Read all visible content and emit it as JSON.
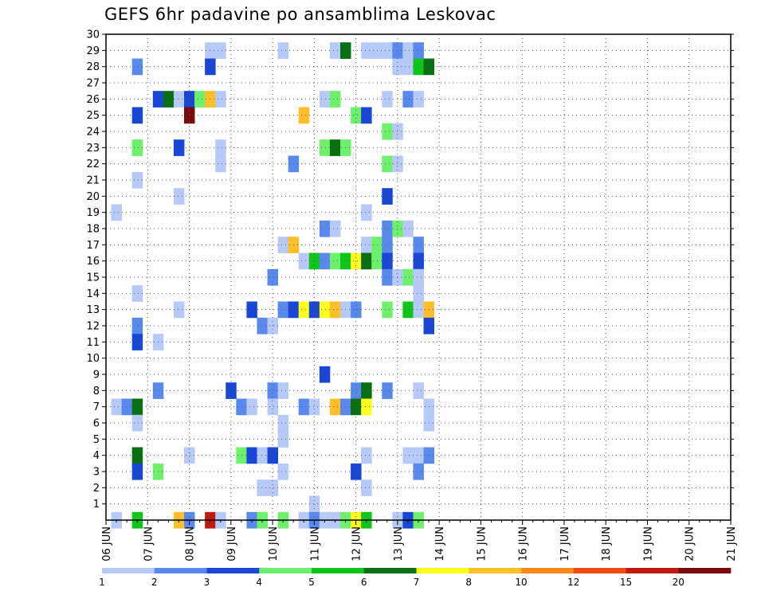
{
  "chart_data": {
    "type": "heatmap",
    "title": "GEFS 6hr padavine po ansamblima Leskovac",
    "x_tick_labels": [
      "06 JUN",
      "07 JUN",
      "08 JUN",
      "09 JUN",
      "10 JUN",
      "11 JUN",
      "12 JUN",
      "13 JUN",
      "14 JUN",
      "15 JUN",
      "16 JUN",
      "17 JUN",
      "18 JUN",
      "19 JUN",
      "20 JUN",
      "21 JUN"
    ],
    "y_tick_labels": [
      "1",
      "2",
      "3",
      "4",
      "5",
      "6",
      "7",
      "8",
      "9",
      "10",
      "11",
      "12",
      "13",
      "14",
      "15",
      "16",
      "17",
      "18",
      "19",
      "20",
      "21",
      "22",
      "23",
      "24",
      "25",
      "26",
      "27",
      "28",
      "29",
      "30"
    ],
    "xlim_days": [
      0,
      15
    ],
    "ylim": [
      0,
      30
    ],
    "time_step_hours": 6,
    "grid": true,
    "legend_position": "bottom",
    "legend": {
      "thresholds": [
        "1",
        "2",
        "3",
        "4",
        "5",
        "6",
        "7",
        "8",
        "10",
        "12",
        "15",
        "20"
      ],
      "colors": [
        "#b7c9f7",
        "#5a89ee",
        "#1a46d8",
        "#6ef06c",
        "#10c41c",
        "#0a6e12",
        "#ffff1e",
        "#ffbf28",
        "#fb8a1a",
        "#f04a12",
        "#c01a0f",
        "#780c0c"
      ]
    },
    "cells": [
      {
        "m": 29,
        "s": 10,
        "c": 1
      },
      {
        "m": 29,
        "s": 11,
        "c": 1
      },
      {
        "m": 29,
        "s": 17,
        "c": 1
      },
      {
        "m": 29,
        "s": 22,
        "c": 1
      },
      {
        "m": 29,
        "s": 23,
        "c": 6
      },
      {
        "m": 29,
        "s": 25,
        "c": 1
      },
      {
        "m": 29,
        "s": 26,
        "c": 1
      },
      {
        "m": 29,
        "s": 27,
        "c": 1
      },
      {
        "m": 29,
        "s": 28,
        "c": 2
      },
      {
        "m": 29,
        "s": 29,
        "c": 1
      },
      {
        "m": 29,
        "s": 30,
        "c": 2
      },
      {
        "m": 28,
        "s": 3,
        "c": 2
      },
      {
        "m": 28,
        "s": 10,
        "c": 3
      },
      {
        "m": 28,
        "s": 28,
        "c": 1
      },
      {
        "m": 28,
        "s": 29,
        "c": 1
      },
      {
        "m": 28,
        "s": 30,
        "c": 5
      },
      {
        "m": 28,
        "s": 31,
        "c": 6
      },
      {
        "m": 26,
        "s": 5,
        "c": 3
      },
      {
        "m": 26,
        "s": 6,
        "c": 6
      },
      {
        "m": 26,
        "s": 7,
        "c": 1
      },
      {
        "m": 26,
        "s": 8,
        "c": 3
      },
      {
        "m": 26,
        "s": 9,
        "c": 4
      },
      {
        "m": 26,
        "s": 10,
        "c": 8
      },
      {
        "m": 26,
        "s": 11,
        "c": 1
      },
      {
        "m": 26,
        "s": 21,
        "c": 1
      },
      {
        "m": 26,
        "s": 22,
        "c": 4
      },
      {
        "m": 26,
        "s": 27,
        "c": 1
      },
      {
        "m": 26,
        "s": 29,
        "c": 2
      },
      {
        "m": 26,
        "s": 30,
        "c": 1
      },
      {
        "m": 25,
        "s": 3,
        "c": 3
      },
      {
        "m": 25,
        "s": 8,
        "c": 12
      },
      {
        "m": 25,
        "s": 19,
        "c": 8
      },
      {
        "m": 25,
        "s": 24,
        "c": 4
      },
      {
        "m": 25,
        "s": 25,
        "c": 3
      },
      {
        "m": 24,
        "s": 27,
        "c": 4
      },
      {
        "m": 24,
        "s": 28,
        "c": 1
      },
      {
        "m": 23,
        "s": 3,
        "c": 4
      },
      {
        "m": 23,
        "s": 7,
        "c": 3
      },
      {
        "m": 23,
        "s": 11,
        "c": 1
      },
      {
        "m": 23,
        "s": 21,
        "c": 4
      },
      {
        "m": 23,
        "s": 22,
        "c": 6
      },
      {
        "m": 23,
        "s": 23,
        "c": 4
      },
      {
        "m": 22,
        "s": 11,
        "c": 1
      },
      {
        "m": 22,
        "s": 18,
        "c": 2
      },
      {
        "m": 22,
        "s": 27,
        "c": 4
      },
      {
        "m": 22,
        "s": 28,
        "c": 1
      },
      {
        "m": 21,
        "s": 3,
        "c": 1
      },
      {
        "m": 20,
        "s": 7,
        "c": 1
      },
      {
        "m": 20,
        "s": 27,
        "c": 3
      },
      {
        "m": 19,
        "s": 1,
        "c": 1
      },
      {
        "m": 19,
        "s": 25,
        "c": 1
      },
      {
        "m": 18,
        "s": 21,
        "c": 2
      },
      {
        "m": 18,
        "s": 22,
        "c": 1
      },
      {
        "m": 18,
        "s": 27,
        "c": 2
      },
      {
        "m": 18,
        "s": 28,
        "c": 4
      },
      {
        "m": 18,
        "s": 29,
        "c": 1
      },
      {
        "m": 17,
        "s": 17,
        "c": 1
      },
      {
        "m": 17,
        "s": 18,
        "c": 8
      },
      {
        "m": 17,
        "s": 25,
        "c": 1
      },
      {
        "m": 17,
        "s": 26,
        "c": 4
      },
      {
        "m": 17,
        "s": 27,
        "c": 2
      },
      {
        "m": 17,
        "s": 30,
        "c": 2
      },
      {
        "m": 16,
        "s": 19,
        "c": 1
      },
      {
        "m": 16,
        "s": 20,
        "c": 5
      },
      {
        "m": 16,
        "s": 21,
        "c": 2
      },
      {
        "m": 16,
        "s": 22,
        "c": 4
      },
      {
        "m": 16,
        "s": 23,
        "c": 5
      },
      {
        "m": 16,
        "s": 24,
        "c": 7
      },
      {
        "m": 16,
        "s": 25,
        "c": 6
      },
      {
        "m": 16,
        "s": 26,
        "c": 4
      },
      {
        "m": 16,
        "s": 27,
        "c": 3
      },
      {
        "m": 16,
        "s": 30,
        "c": 3
      },
      {
        "m": 15,
        "s": 16,
        "c": 2
      },
      {
        "m": 15,
        "s": 27,
        "c": 2
      },
      {
        "m": 15,
        "s": 28,
        "c": 1
      },
      {
        "m": 15,
        "s": 29,
        "c": 4
      },
      {
        "m": 15,
        "s": 30,
        "c": 1
      },
      {
        "m": 14,
        "s": 3,
        "c": 1
      },
      {
        "m": 14,
        "s": 30,
        "c": 1
      },
      {
        "m": 13,
        "s": 7,
        "c": 1
      },
      {
        "m": 13,
        "s": 14,
        "c": 3
      },
      {
        "m": 13,
        "s": 17,
        "c": 2
      },
      {
        "m": 13,
        "s": 18,
        "c": 3
      },
      {
        "m": 13,
        "s": 19,
        "c": 7
      },
      {
        "m": 13,
        "s": 20,
        "c": 3
      },
      {
        "m": 13,
        "s": 21,
        "c": 7
      },
      {
        "m": 13,
        "s": 22,
        "c": 8
      },
      {
        "m": 13,
        "s": 23,
        "c": 1
      },
      {
        "m": 13,
        "s": 24,
        "c": 2
      },
      {
        "m": 13,
        "s": 27,
        "c": 4
      },
      {
        "m": 13,
        "s": 29,
        "c": 5
      },
      {
        "m": 13,
        "s": 30,
        "c": 1
      },
      {
        "m": 13,
        "s": 31,
        "c": 8
      },
      {
        "m": 12,
        "s": 3,
        "c": 2
      },
      {
        "m": 12,
        "s": 15,
        "c": 2
      },
      {
        "m": 12,
        "s": 16,
        "c": 1
      },
      {
        "m": 12,
        "s": 31,
        "c": 3
      },
      {
        "m": 11,
        "s": 3,
        "c": 3
      },
      {
        "m": 11,
        "s": 5,
        "c": 1
      },
      {
        "m": 9,
        "s": 21,
        "c": 3
      },
      {
        "m": 8,
        "s": 5,
        "c": 2
      },
      {
        "m": 8,
        "s": 12,
        "c": 3
      },
      {
        "m": 8,
        "s": 16,
        "c": 2
      },
      {
        "m": 8,
        "s": 17,
        "c": 1
      },
      {
        "m": 8,
        "s": 24,
        "c": 2
      },
      {
        "m": 8,
        "s": 25,
        "c": 6
      },
      {
        "m": 8,
        "s": 27,
        "c": 2
      },
      {
        "m": 8,
        "s": 30,
        "c": 1
      },
      {
        "m": 7,
        "s": 1,
        "c": 1
      },
      {
        "m": 7,
        "s": 2,
        "c": 2
      },
      {
        "m": 7,
        "s": 3,
        "c": 6
      },
      {
        "m": 7,
        "s": 13,
        "c": 2
      },
      {
        "m": 7,
        "s": 14,
        "c": 1
      },
      {
        "m": 7,
        "s": 16,
        "c": 1
      },
      {
        "m": 7,
        "s": 19,
        "c": 2
      },
      {
        "m": 7,
        "s": 20,
        "c": 1
      },
      {
        "m": 7,
        "s": 22,
        "c": 8
      },
      {
        "m": 7,
        "s": 23,
        "c": 2
      },
      {
        "m": 7,
        "s": 24,
        "c": 6
      },
      {
        "m": 7,
        "s": 25,
        "c": 7
      },
      {
        "m": 7,
        "s": 31,
        "c": 1
      },
      {
        "m": 6,
        "s": 3,
        "c": 1
      },
      {
        "m": 6,
        "s": 17,
        "c": 1
      },
      {
        "m": 6,
        "s": 31,
        "c": 1
      },
      {
        "m": 5,
        "s": 17,
        "c": 1
      },
      {
        "m": 4,
        "s": 3,
        "c": 6
      },
      {
        "m": 4,
        "s": 8,
        "c": 1
      },
      {
        "m": 4,
        "s": 13,
        "c": 4
      },
      {
        "m": 4,
        "s": 14,
        "c": 3
      },
      {
        "m": 4,
        "s": 15,
        "c": 1
      },
      {
        "m": 4,
        "s": 16,
        "c": 3
      },
      {
        "m": 4,
        "s": 25,
        "c": 1
      },
      {
        "m": 4,
        "s": 29,
        "c": 1
      },
      {
        "m": 4,
        "s": 30,
        "c": 1
      },
      {
        "m": 4,
        "s": 31,
        "c": 2
      },
      {
        "m": 3,
        "s": 3,
        "c": 3
      },
      {
        "m": 3,
        "s": 5,
        "c": 4
      },
      {
        "m": 3,
        "s": 17,
        "c": 1
      },
      {
        "m": 3,
        "s": 24,
        "c": 3
      },
      {
        "m": 3,
        "s": 30,
        "c": 2
      },
      {
        "m": 2,
        "s": 15,
        "c": 1
      },
      {
        "m": 2,
        "s": 16,
        "c": 1
      },
      {
        "m": 2,
        "s": 25,
        "c": 1
      },
      {
        "m": 1,
        "s": 20,
        "c": 1
      },
      {
        "m": 0,
        "s": 1,
        "c": 1
      },
      {
        "m": 0,
        "s": 3,
        "c": 5
      },
      {
        "m": 0,
        "s": 7,
        "c": 8
      },
      {
        "m": 0,
        "s": 8,
        "c": 2
      },
      {
        "m": 0,
        "s": 10,
        "c": 11
      },
      {
        "m": 0,
        "s": 11,
        "c": 1
      },
      {
        "m": 0,
        "s": 14,
        "c": 2
      },
      {
        "m": 0,
        "s": 15,
        "c": 4
      },
      {
        "m": 0,
        "s": 17,
        "c": 4
      },
      {
        "m": 0,
        "s": 19,
        "c": 1
      },
      {
        "m": 0,
        "s": 20,
        "c": 2
      },
      {
        "m": 0,
        "s": 21,
        "c": 1
      },
      {
        "m": 0,
        "s": 22,
        "c": 1
      },
      {
        "m": 0,
        "s": 23,
        "c": 4
      },
      {
        "m": 0,
        "s": 24,
        "c": 7
      },
      {
        "m": 0,
        "s": 25,
        "c": 5
      },
      {
        "m": 0,
        "s": 28,
        "c": 1
      },
      {
        "m": 0,
        "s": 29,
        "c": 3
      },
      {
        "m": 0,
        "s": 30,
        "c": 4
      }
    ]
  }
}
